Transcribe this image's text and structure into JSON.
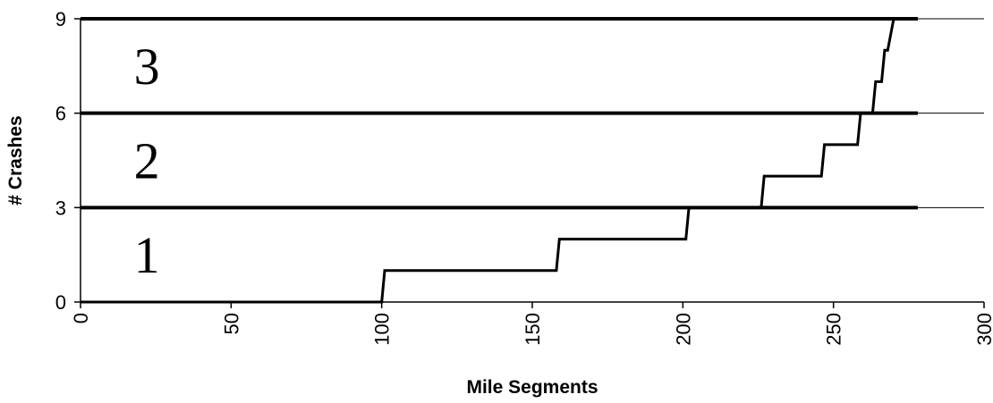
{
  "chart_data": {
    "type": "line",
    "xlabel": "Mile Segments",
    "ylabel": "# Crashes",
    "xlim": [
      0,
      300
    ],
    "ylim": [
      0,
      9
    ],
    "x_ticks": [
      0,
      50,
      100,
      150,
      200,
      250,
      300
    ],
    "y_ticks": [
      0,
      3,
      6,
      9
    ],
    "grid": "horizontal",
    "series": [
      {
        "step": true,
        "points": [
          [
            0,
            0
          ],
          [
            100,
            0
          ],
          [
            101,
            1
          ],
          [
            158,
            1
          ],
          [
            159,
            2
          ],
          [
            201,
            2
          ],
          [
            202,
            3
          ],
          [
            226,
            3
          ],
          [
            227,
            4
          ],
          [
            246,
            4
          ],
          [
            247,
            5
          ],
          [
            258,
            5
          ],
          [
            259,
            6
          ],
          [
            263,
            6
          ],
          [
            264,
            7
          ],
          [
            266,
            7
          ],
          [
            267,
            8
          ],
          [
            268,
            8
          ],
          [
            270,
            9
          ]
        ]
      }
    ],
    "threshold_lines": [
      {
        "y": 3,
        "x_range": [
          0,
          278
        ]
      },
      {
        "y": 6,
        "x_range": [
          0,
          278
        ]
      },
      {
        "y": 9,
        "x_range": [
          0,
          278
        ]
      }
    ],
    "band_labels": [
      {
        "text": "1",
        "x": 22,
        "y": 1.5
      },
      {
        "text": "2",
        "x": 22,
        "y": 4.5
      },
      {
        "text": "3",
        "x": 22,
        "y": 7.5
      }
    ]
  }
}
